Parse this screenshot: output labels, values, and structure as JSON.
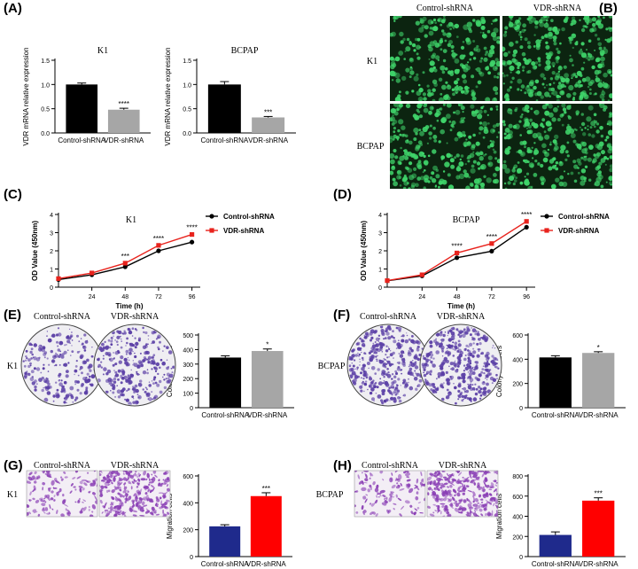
{
  "panel_letters": [
    "(A)",
    "(B)",
    "(C)",
    "(D)",
    "(E)",
    "(F)",
    "(G)",
    "(H)"
  ],
  "colors": {
    "black": "#000000",
    "gray": "#a6a6a6",
    "red": "#e8231d",
    "navy": "#1f2a8c",
    "fluor_bg": "#0c2410",
    "fluor_cell": "#3fd46a",
    "crystal_violet": "#5b3fa6",
    "dish_bg": "#efeef2",
    "migration_bg": "#f3eef5",
    "migration_cell": "#8a3fb5"
  },
  "chart_data": [
    {
      "id": "A-K1",
      "type": "bar",
      "title": "K1",
      "categories": [
        "Control-shRNA",
        "VDR-shRNA"
      ],
      "values": [
        1.0,
        0.48
      ],
      "errors": [
        0.03,
        0.03
      ],
      "bar_colors": [
        "#000000",
        "#a6a6a6"
      ],
      "ylabel": "VDR mRNA relative expression",
      "ylim": [
        0,
        1.5
      ],
      "yticks": [
        "0.0",
        "0.5",
        "1.0",
        "1.5"
      ],
      "yticks_values": [
        0,
        0.5,
        1.0,
        1.5
      ],
      "significance": [
        "",
        "****"
      ]
    },
    {
      "id": "A-BCPAP",
      "type": "bar",
      "title": "BCPAP",
      "categories": [
        "Control-shRNA",
        "VDR-shRNA"
      ],
      "values": [
        1.0,
        0.32
      ],
      "errors": [
        0.06,
        0.02
      ],
      "bar_colors": [
        "#000000",
        "#a6a6a6"
      ],
      "ylabel": "VDR mRNA relative expression",
      "ylim": [
        0,
        1.5
      ],
      "yticks": [
        "0.0",
        "0.5",
        "1.0",
        "1.5"
      ],
      "yticks_values": [
        0,
        0.5,
        1.0,
        1.5
      ],
      "significance": [
        "",
        "***"
      ]
    },
    {
      "id": "C-K1",
      "type": "line",
      "title": "K1",
      "x": [
        0,
        24,
        48,
        72,
        96
      ],
      "xticks": [
        "24",
        "48",
        "72",
        "96"
      ],
      "xticks_values": [
        24,
        48,
        72,
        96
      ],
      "xlim": [
        0,
        102
      ],
      "series": [
        {
          "name": "Control-shRNA",
          "color": "#000000",
          "marker": "circle",
          "values": [
            0.42,
            0.68,
            1.12,
            2.0,
            2.48
          ]
        },
        {
          "name": "VDR-shRNA",
          "color": "#e8231d",
          "marker": "square",
          "values": [
            0.47,
            0.78,
            1.32,
            2.3,
            2.9
          ]
        }
      ],
      "significance": [
        {
          "x": 48,
          "label": "***"
        },
        {
          "x": 72,
          "label": "****"
        },
        {
          "x": 96,
          "label": "****"
        }
      ],
      "xlabel": "Time (h)",
      "ylabel": "OD Value (450nm)",
      "ylim": [
        0,
        4
      ],
      "yticks": [
        "0",
        "1",
        "2",
        "3",
        "4"
      ],
      "yticks_values": [
        0,
        1,
        2,
        3,
        4
      ]
    },
    {
      "id": "D-BCPAP",
      "type": "line",
      "title": "BCPAP",
      "x": [
        0,
        24,
        48,
        72,
        96
      ],
      "xticks": [
        "24",
        "48",
        "72",
        "96"
      ],
      "xticks_values": [
        24,
        48,
        72,
        96
      ],
      "xlim": [
        0,
        102
      ],
      "series": [
        {
          "name": "Control-shRNA",
          "color": "#000000",
          "marker": "circle",
          "values": [
            0.35,
            0.62,
            1.62,
            1.98,
            3.3
          ]
        },
        {
          "name": "VDR-shRNA",
          "color": "#e8231d",
          "marker": "square",
          "values": [
            0.36,
            0.68,
            1.88,
            2.4,
            3.62
          ]
        }
      ],
      "significance": [
        {
          "x": 48,
          "label": "****"
        },
        {
          "x": 72,
          "label": "****"
        },
        {
          "x": 96,
          "label": "****"
        }
      ],
      "xlabel": "Time (h)",
      "ylabel": "OD Value (450nm)",
      "ylim": [
        0,
        4
      ],
      "yticks": [
        "0",
        "1",
        "2",
        "3",
        "4"
      ],
      "yticks_values": [
        0,
        1,
        2,
        3,
        4
      ]
    },
    {
      "id": "E-K1",
      "type": "bar",
      "title": "",
      "categories": [
        "Control-shRNA",
        "VDR-shRNA"
      ],
      "values": [
        345,
        390
      ],
      "errors": [
        12,
        14
      ],
      "bar_colors": [
        "#000000",
        "#a6a6a6"
      ],
      "ylabel": "Colony numbers",
      "ylim": [
        0,
        500
      ],
      "yticks": [
        "0",
        "100",
        "200",
        "300",
        "400",
        "500"
      ],
      "yticks_values": [
        0,
        100,
        200,
        300,
        400,
        500
      ],
      "significance": [
        "",
        "*"
      ]
    },
    {
      "id": "F-BCPAP",
      "type": "bar",
      "title": "",
      "categories": [
        "Control-shRNA",
        "VDR-shRNA"
      ],
      "values": [
        415,
        452
      ],
      "errors": [
        14,
        10
      ],
      "bar_colors": [
        "#000000",
        "#a6a6a6"
      ],
      "ylabel": "Colony numbers",
      "ylim": [
        0,
        600
      ],
      "yticks": [
        "0",
        "200",
        "400",
        "600"
      ],
      "yticks_values": [
        0,
        200,
        400,
        600
      ],
      "significance": [
        "",
        "*"
      ]
    },
    {
      "id": "G-K1",
      "type": "bar",
      "title": "",
      "categories": [
        "Control-shRNA",
        "VDR-shRNA"
      ],
      "values": [
        225,
        450
      ],
      "errors": [
        12,
        25
      ],
      "bar_colors": [
        "#1f2a8c",
        "#ff0000"
      ],
      "ylabel": "Migration cells",
      "ylim": [
        0,
        600
      ],
      "yticks": [
        "0",
        "200",
        "400",
        "600"
      ],
      "yticks_values": [
        0,
        200,
        400,
        600
      ],
      "significance": [
        "",
        "***"
      ]
    },
    {
      "id": "H-BCPAP",
      "type": "bar",
      "title": "",
      "categories": [
        "Control-shRNA",
        "VDR-shRNA"
      ],
      "values": [
        215,
        555
      ],
      "errors": [
        30,
        28
      ],
      "bar_colors": [
        "#1f2a8c",
        "#ff0000"
      ],
      "ylabel": "Migration cells",
      "ylim": [
        0,
        800
      ],
      "yticks": [
        "0",
        "200",
        "400",
        "600",
        "800"
      ],
      "yticks_values": [
        0,
        200,
        400,
        600,
        800
      ],
      "significance": [
        "",
        "***"
      ]
    }
  ],
  "image_panels": {
    "B": {
      "col_labels": [
        "Control-shRNA",
        "VDR-shRNA"
      ],
      "row_labels": [
        "K1",
        "BCPAP"
      ]
    },
    "E": {
      "row_label": "K1",
      "col_labels": [
        "Control-shRNA",
        "VDR-shRNA"
      ]
    },
    "F": {
      "row_label": "BCPAP",
      "col_labels": [
        "Control-shRNA",
        "VDR-shRNA"
      ]
    },
    "G": {
      "row_label": "K1",
      "col_labels": [
        "Control-shRNA",
        "VDR-shRNA"
      ]
    },
    "H": {
      "row_label": "BCPAP",
      "col_labels": [
        "Control-shRNA",
        "VDR-shRNA"
      ]
    }
  }
}
